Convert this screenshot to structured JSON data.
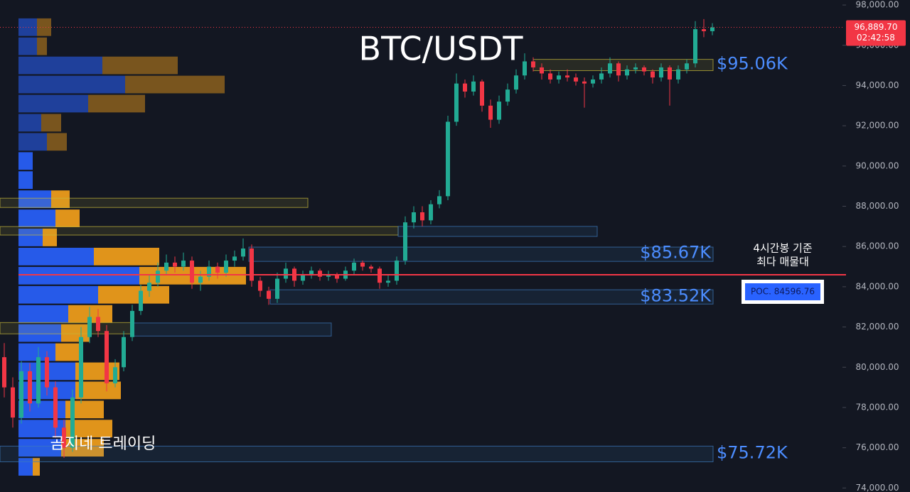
{
  "chart_data": {
    "type": "candlestick",
    "title": "BTC/USDT",
    "watermark": "곰지네 트레이딩",
    "annotation": [
      "4시간봉 기준",
      "최다 매물대"
    ],
    "ylim": [
      73800,
      98250
    ],
    "yticks": [
      {
        "value": 74000,
        "label": "74,000.00"
      },
      {
        "value": 76000,
        "label": "76,000.00"
      },
      {
        "value": 78000,
        "label": "78,000.00"
      },
      {
        "value": 80000,
        "label": "80,000.00"
      },
      {
        "value": 82000,
        "label": "82,000.00"
      },
      {
        "value": 84000,
        "label": "84,000.00"
      },
      {
        "value": 86000,
        "label": "86,000.00"
      },
      {
        "value": 88000,
        "label": "88,000.00"
      },
      {
        "value": 90000,
        "label": "90,000.00"
      },
      {
        "value": 92000,
        "label": "92,000.00"
      },
      {
        "value": 94000,
        "label": "94,000.00"
      },
      {
        "value": 96000,
        "label": "96,000.00"
      },
      {
        "value": 98000,
        "label": "98,000.00"
      }
    ],
    "up_color": "#22ab94",
    "down_color": "#f23645",
    "ohlc": [
      [
        80500,
        81200,
        78500,
        79000
      ],
      [
        79000,
        79500,
        77000,
        77500
      ],
      [
        77500,
        80300,
        77200,
        79800
      ],
      [
        79800,
        80200,
        77800,
        78200
      ],
      [
        78200,
        81000,
        78000,
        80500
      ],
      [
        80500,
        80800,
        78600,
        79000
      ],
      [
        79000,
        79300,
        76500,
        77000
      ],
      [
        77000,
        77400,
        75500,
        76000
      ],
      [
        76000,
        78900,
        75800,
        78500
      ],
      [
        78500,
        82000,
        78200,
        81500
      ],
      [
        81500,
        83000,
        81200,
        82500
      ],
      [
        82500,
        82900,
        81500,
        81800
      ],
      [
        81800,
        82100,
        78800,
        79200
      ],
      [
        79200,
        80400,
        79000,
        80000
      ],
      [
        80000,
        81800,
        79800,
        81500
      ],
      [
        81500,
        83100,
        81300,
        82800
      ],
      [
        82800,
        84100,
        82600,
        83800
      ],
      [
        83800,
        84600,
        83500,
        84200
      ],
      [
        84200,
        85200,
        84000,
        84800
      ],
      [
        84800,
        85600,
        84600,
        85200
      ],
      [
        85200,
        85500,
        84700,
        85000
      ],
      [
        85000,
        85700,
        84800,
        85300
      ],
      [
        85300,
        85500,
        83900,
        84200
      ],
      [
        84200,
        84800,
        83800,
        84500
      ],
      [
        84500,
        85300,
        84300,
        85000
      ],
      [
        85000,
        85200,
        84400,
        84700
      ],
      [
        84700,
        85600,
        84500,
        85300
      ],
      [
        85300,
        85800,
        85000,
        85500
      ],
      [
        85500,
        86400,
        85300,
        85900
      ],
      [
        85900,
        86100,
        84000,
        84300
      ],
      [
        84300,
        84500,
        83500,
        83800
      ],
      [
        83800,
        84000,
        83100,
        83400
      ],
      [
        83400,
        84700,
        83200,
        84400
      ],
      [
        84400,
        85200,
        84200,
        84900
      ],
      [
        84900,
        85000,
        84000,
        84300
      ],
      [
        84300,
        84800,
        84100,
        84600
      ],
      [
        84600,
        85000,
        84400,
        84800
      ],
      [
        84800,
        84900,
        84300,
        84500
      ],
      [
        84500,
        84800,
        84300,
        84600
      ],
      [
        84600,
        84700,
        84200,
        84400
      ],
      [
        84400,
        85000,
        84300,
        84800
      ],
      [
        84800,
        85400,
        84600,
        85200
      ],
      [
        85200,
        85300,
        84800,
        85000
      ],
      [
        85000,
        85100,
        84700,
        84900
      ],
      [
        84900,
        85000,
        83900,
        84200
      ],
      [
        84200,
        84600,
        84000,
        84300
      ],
      [
        84300,
        85500,
        84100,
        85300
      ],
      [
        85300,
        87500,
        85100,
        87200
      ],
      [
        87200,
        88000,
        86900,
        87700
      ],
      [
        87700,
        88000,
        87000,
        87300
      ],
      [
        87300,
        88300,
        87100,
        88100
      ],
      [
        88100,
        88800,
        87900,
        88500
      ],
      [
        88500,
        92500,
        88300,
        92200
      ],
      [
        92200,
        94600,
        92000,
        94100
      ],
      [
        94100,
        94300,
        93400,
        93700
      ],
      [
        93700,
        94500,
        93500,
        94200
      ],
      [
        94200,
        94300,
        92700,
        93000
      ],
      [
        93000,
        93300,
        91900,
        92300
      ],
      [
        92300,
        93500,
        92100,
        93200
      ],
      [
        93200,
        94100,
        93000,
        93800
      ],
      [
        93800,
        94800,
        93600,
        94500
      ],
      [
        94500,
        95600,
        94300,
        95200
      ],
      [
        95200,
        95400,
        94700,
        94900
      ],
      [
        94900,
        95100,
        94300,
        94600
      ],
      [
        94600,
        94800,
        94100,
        94300
      ],
      [
        94300,
        94700,
        94100,
        94500
      ],
      [
        94500,
        94800,
        94200,
        94400
      ],
      [
        94400,
        94600,
        94000,
        94200
      ],
      [
        94200,
        94400,
        92900,
        94100
      ],
      [
        94100,
        94500,
        93900,
        94300
      ],
      [
        94300,
        94900,
        94100,
        94600
      ],
      [
        94600,
        95400,
        94400,
        95100
      ],
      [
        95100,
        95200,
        94200,
        94500
      ],
      [
        94500,
        95000,
        94300,
        94800
      ],
      [
        94800,
        95100,
        94600,
        94900
      ],
      [
        94900,
        95000,
        94500,
        94700
      ],
      [
        94700,
        94800,
        94100,
        94400
      ],
      [
        94400,
        95100,
        94200,
        94900
      ],
      [
        94900,
        95000,
        93000,
        94300
      ],
      [
        94300,
        95000,
        94100,
        94800
      ],
      [
        94800,
        95300,
        94600,
        95100
      ],
      [
        95100,
        97200,
        94900,
        96800
      ],
      [
        96800,
        97300,
        96400,
        96700
      ],
      [
        96700,
        97100,
        96500,
        96889.7
      ]
    ],
    "last_price": {
      "value": 96889.7,
      "label": "96,889.70"
    },
    "countdown": "02:42:58",
    "poc": {
      "value": 84596.76,
      "label": "POC. 84596.76",
      "color": "#f23645"
    },
    "volume_profile": {
      "buy_color": "#2962ff",
      "sell_color": "#f7a21b",
      "price": [
        96900,
        95950,
        95000,
        94050,
        93100,
        92150,
        91200,
        90250,
        89300,
        88350,
        87400,
        86450,
        85500,
        84550,
        83600,
        82650,
        81700,
        80750,
        79800,
        78850,
        77900,
        76950,
        76000,
        75050
      ],
      "buy": [
        26,
        26,
        118,
        150,
        98,
        32,
        40,
        20,
        20,
        46,
        52,
        34,
        106,
        170,
        112,
        70,
        60,
        52,
        80,
        80,
        66,
        66,
        60,
        20
      ],
      "sell": [
        20,
        14,
        106,
        140,
        80,
        28,
        28,
        0,
        0,
        26,
        34,
        20,
        92,
        150,
        100,
        62,
        40,
        38,
        62,
        64,
        54,
        66,
        60,
        10
      ]
    },
    "zones": [
      {
        "low": 94740,
        "high": 95300,
        "color": "#c8b93a",
        "value": 95060,
        "label": "$95.06K"
      },
      {
        "low": 85260,
        "high": 85970,
        "color": "#3d7bbf",
        "value": 85670,
        "label": "$85.67K"
      },
      {
        "low": 83140,
        "high": 83850,
        "color": "#3d7bbf",
        "value": 83520,
        "label": "$83.52K"
      },
      {
        "low": 75300,
        "high": 76080,
        "color": "#3d7bbf",
        "value": 75720,
        "label": "$75.72K"
      },
      {
        "low": 87940,
        "high": 88400,
        "color": "#c8b93a"
      },
      {
        "low": 86570,
        "high": 86990,
        "color": "#c8b93a"
      },
      {
        "low": 86500,
        "high": 87000,
        "color": "#3d7bbf"
      },
      {
        "low": 81660,
        "high": 82220,
        "color": "#c8b93a"
      },
      {
        "low": 81550,
        "high": 82200,
        "color": "#3d7bbf"
      }
    ]
  }
}
